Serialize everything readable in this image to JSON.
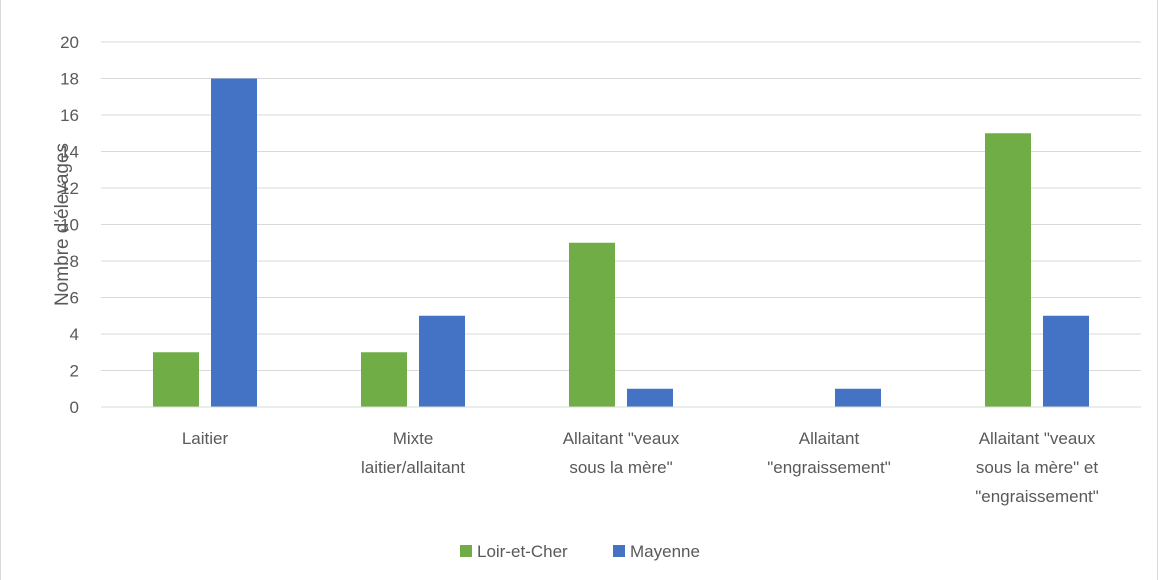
{
  "chart_data": {
    "type": "bar",
    "title": "",
    "ylabel": "Nombre d'élevages",
    "xlabel": "",
    "ylim": [
      0,
      20
    ],
    "yticks": [
      0,
      2,
      4,
      6,
      8,
      10,
      12,
      14,
      16,
      18,
      20
    ],
    "grid": true,
    "legend_position": "bottom",
    "categories": [
      [
        "Laitier"
      ],
      [
        "Mixte",
        "laitier/allaitant"
      ],
      [
        "Allaitant \"veaux",
        "sous la mère\""
      ],
      [
        "Allaitant",
        "\"engraissement\""
      ],
      [
        "Allaitant \"veaux",
        "sous la mère\" et",
        "\"engraissement\""
      ]
    ],
    "series": [
      {
        "name": "Loir-et-Cher",
        "color": "#70ad47",
        "values": [
          3,
          3,
          9,
          0,
          15
        ]
      },
      {
        "name": "Mayenne",
        "color": "#4472c4",
        "values": [
          18,
          5,
          1,
          1,
          5
        ]
      }
    ]
  }
}
